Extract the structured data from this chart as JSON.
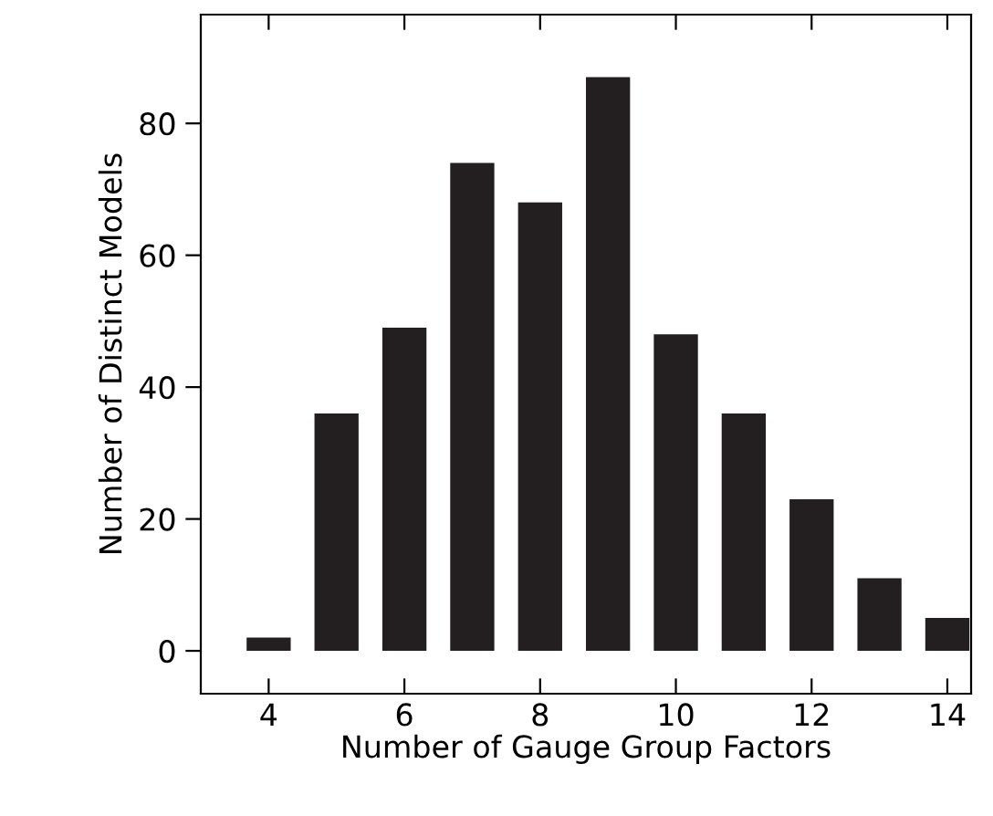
{
  "chart_data": {
    "type": "bar",
    "xlabel": "Number of Gauge Group Factors",
    "ylabel": "Number of Distinct Models",
    "x": [
      4,
      5,
      6,
      7,
      8,
      9,
      10,
      11,
      12,
      13,
      14
    ],
    "values": [
      2,
      36,
      49,
      74,
      68,
      87,
      48,
      36,
      23,
      11,
      5
    ],
    "color": "#231f20",
    "xlim": [
      3,
      14.35
    ],
    "ylim": [
      -6.5,
      96.5
    ],
    "xticks": [
      4,
      6,
      8,
      10,
      12,
      14
    ],
    "yticks": [
      0,
      20,
      40,
      60,
      80
    ],
    "grid": false
  }
}
